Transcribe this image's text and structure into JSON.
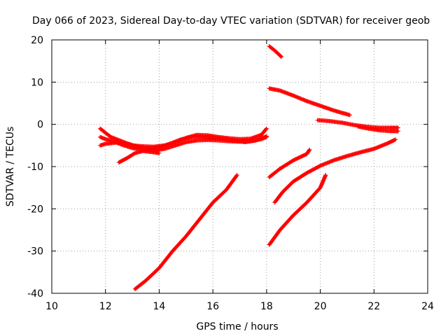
{
  "chart_data": {
    "type": "scatter",
    "title": "Day 066 of 2023, Sidereal Day-to-day VTEC variation (SDTVAR) for receiver geob",
    "xlabel": "GPS time / hours",
    "ylabel": "SDTVAR / TECUs",
    "xlim": [
      10,
      24
    ],
    "ylim": [
      -40,
      20
    ],
    "xticks": [
      10,
      12,
      14,
      16,
      18,
      20,
      22,
      24
    ],
    "yticks": [
      -40,
      -30,
      -20,
      -10,
      0,
      10,
      20
    ],
    "grid": true,
    "marker": "plus",
    "color": "#ff0000",
    "series": [
      {
        "points": [
          [
            11.8,
            -1
          ],
          [
            12.0,
            -2
          ],
          [
            12.2,
            -3
          ],
          [
            12.6,
            -4
          ],
          [
            13.0,
            -5
          ],
          [
            13.4,
            -5.2
          ],
          [
            13.8,
            -5.3
          ],
          [
            14.2,
            -5
          ],
          [
            14.6,
            -4.2
          ],
          [
            15.0,
            -3.2
          ],
          [
            15.4,
            -2.5
          ],
          [
            15.8,
            -2.6
          ],
          [
            16.2,
            -3
          ],
          [
            16.6,
            -3.3
          ],
          [
            17.0,
            -3.5
          ],
          [
            17.4,
            -3.4
          ],
          [
            17.8,
            -2.5
          ],
          [
            18.0,
            -1
          ]
        ]
      },
      {
        "points": [
          [
            11.8,
            -3
          ],
          [
            12.0,
            -3.5
          ],
          [
            12.3,
            -4
          ],
          [
            12.6,
            -4.8
          ],
          [
            13.0,
            -5.6
          ],
          [
            13.4,
            -6
          ],
          [
            13.8,
            -6.2
          ],
          [
            14.2,
            -5.8
          ],
          [
            14.6,
            -5
          ],
          [
            15.0,
            -4.2
          ],
          [
            15.4,
            -3.8
          ],
          [
            15.8,
            -3.7
          ],
          [
            16.2,
            -3.8
          ],
          [
            16.6,
            -4
          ],
          [
            17.0,
            -4.1
          ],
          [
            17.4,
            -4
          ],
          [
            17.8,
            -3.5
          ],
          [
            18.0,
            -3
          ]
        ]
      },
      {
        "points": [
          [
            11.8,
            -5
          ],
          [
            12.0,
            -4.6
          ],
          [
            12.4,
            -4.3
          ],
          [
            12.8,
            -4.5
          ],
          [
            13.2,
            -5.3
          ],
          [
            13.6,
            -5.7
          ],
          [
            14.0,
            -5.5
          ],
          [
            14.4,
            -4.6
          ],
          [
            14.8,
            -3.6
          ],
          [
            15.2,
            -3.0
          ],
          [
            15.6,
            -3.0
          ],
          [
            16.0,
            -3.2
          ],
          [
            16.4,
            -3.5
          ],
          [
            16.8,
            -3.8
          ],
          [
            17.2,
            -4.2
          ],
          [
            17.6,
            -3.8
          ],
          [
            18.0,
            -2.8
          ]
        ]
      },
      {
        "points": [
          [
            12.5,
            -9
          ],
          [
            12.8,
            -8
          ],
          [
            13.1,
            -6.8
          ],
          [
            13.4,
            -6.3
          ],
          [
            13.8,
            -6.6
          ],
          [
            14.0,
            -6.8
          ]
        ]
      },
      {
        "points": [
          [
            13.1,
            -39
          ],
          [
            13.5,
            -37
          ],
          [
            14.0,
            -34
          ],
          [
            14.5,
            -30
          ],
          [
            15.0,
            -26.5
          ],
          [
            15.5,
            -22.5
          ],
          [
            16.0,
            -18.5
          ],
          [
            16.5,
            -15.5
          ],
          [
            16.9,
            -12
          ]
        ]
      },
      {
        "points": [
          [
            18.1,
            18.5
          ],
          [
            18.3,
            17.5
          ],
          [
            18.55,
            16
          ]
        ]
      },
      {
        "points": [
          [
            18.1,
            8.5
          ],
          [
            18.5,
            8
          ],
          [
            19.0,
            6.8
          ],
          [
            19.5,
            5.5
          ],
          [
            20.0,
            4.4
          ],
          [
            20.5,
            3.3
          ],
          [
            21.1,
            2.2
          ]
        ]
      },
      {
        "points": [
          [
            19.9,
            1
          ],
          [
            20.3,
            0.8
          ],
          [
            20.8,
            0.4
          ],
          [
            21.3,
            -0.2
          ],
          [
            21.8,
            -0.6
          ],
          [
            22.2,
            -0.8
          ],
          [
            22.6,
            -0.8
          ],
          [
            22.9,
            -0.8
          ]
        ]
      },
      {
        "points": [
          [
            21.4,
            -0.5
          ],
          [
            21.8,
            -1
          ],
          [
            22.2,
            -1.4
          ],
          [
            22.6,
            -1.6
          ],
          [
            22.9,
            -1.6
          ]
        ]
      },
      {
        "points": [
          [
            18.1,
            -12.5
          ],
          [
            18.5,
            -10.5
          ],
          [
            19.0,
            -8.5
          ],
          [
            19.5,
            -7
          ],
          [
            19.6,
            -6
          ]
        ]
      },
      {
        "points": [
          [
            18.3,
            -18.5
          ],
          [
            18.6,
            -16
          ],
          [
            19.0,
            -13.5
          ],
          [
            19.5,
            -11.5
          ],
          [
            20.0,
            -9.8
          ],
          [
            20.5,
            -8.5
          ],
          [
            21.0,
            -7.5
          ],
          [
            21.5,
            -6.6
          ],
          [
            22.0,
            -5.8
          ],
          [
            22.5,
            -4.5
          ],
          [
            22.8,
            -3.6
          ]
        ]
      },
      {
        "points": [
          [
            18.1,
            -28.5
          ],
          [
            18.5,
            -25
          ],
          [
            19.0,
            -21.5
          ],
          [
            19.5,
            -18.5
          ],
          [
            20.0,
            -15
          ],
          [
            20.2,
            -12
          ]
        ]
      }
    ]
  }
}
